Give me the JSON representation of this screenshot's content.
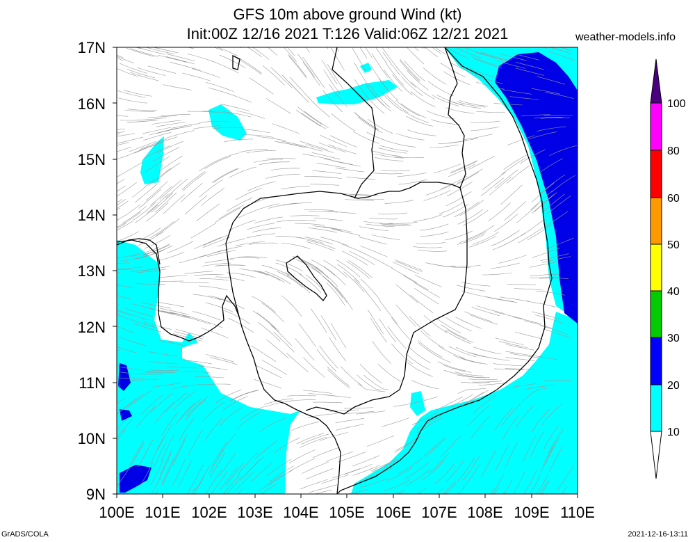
{
  "header": {
    "title_line1": "GFS 10m above ground Wind (kt)",
    "title_line2": "Init:00Z 12/16 2021 T:126 Valid:06Z 12/21 2021",
    "site": "weather-models.info"
  },
  "axes": {
    "lat_labels": [
      "17N",
      "16N",
      "15N",
      "14N",
      "13N",
      "12N",
      "11N",
      "10N",
      "9N"
    ],
    "lon_labels": [
      "100E",
      "101E",
      "102E",
      "103E",
      "104E",
      "105E",
      "106E",
      "107E",
      "108E",
      "109E",
      "110E"
    ]
  },
  "colorbar": {
    "labels": [
      "100",
      "80",
      "60",
      "50",
      "40",
      "30",
      "20",
      "10"
    ],
    "colors": [
      "#9900ff",
      "#ff00ff",
      "#ff0000",
      "#ff9900",
      "#ffff00",
      "#00cc00",
      "#0000ff",
      "#00ffff",
      "#ffffff"
    ],
    "top_color": "#4b0082"
  },
  "footer": {
    "left": "GrADS/COLA",
    "right": "2021-12-16-13:11"
  }
}
